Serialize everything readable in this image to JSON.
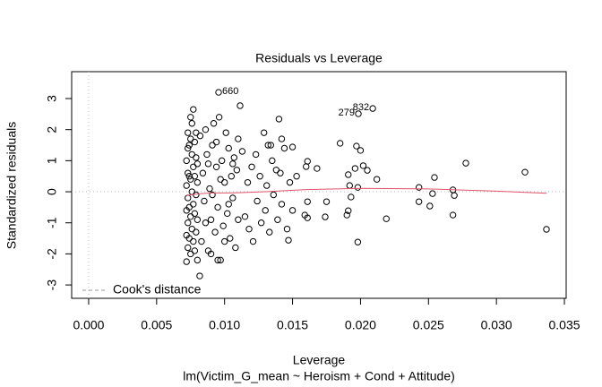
{
  "chart_data": {
    "type": "scatter",
    "title": "Residuals vs Leverage",
    "x_label": "Leverage",
    "y_label": "Standardized residuals",
    "subtitle": "lm(Victim_G_mean ~ Heroism + Cond + Attitude)",
    "xlim": [
      -0.00125,
      0.03513
    ],
    "ylim": [
      -3.43,
      3.865
    ],
    "xticks": [
      {
        "value": 0,
        "label": "0.000"
      },
      {
        "value": 0.005,
        "label": "0.005"
      },
      {
        "value": 0.01,
        "label": "0.010"
      },
      {
        "value": 0.015,
        "label": "0.015"
      },
      {
        "value": 0.02,
        "label": "0.020"
      },
      {
        "value": 0.025,
        "label": "0.025"
      },
      {
        "value": 0.03,
        "label": "0.030"
      },
      {
        "value": 0.035,
        "label": "0.035"
      }
    ],
    "yticks": [
      -3,
      -2,
      -1,
      0,
      1,
      2,
      3
    ],
    "ref_lines": {
      "x": 0,
      "y": 0,
      "color": "#bbbbbb"
    },
    "points": {
      "color": "#000000",
      "x": [
        0.00956,
        0.0209,
        0.01984,
        0.01114,
        0.00817,
        0.03368,
        0.0321,
        0.02775,
        0.0268,
        0.0268,
        0.0269,
        0.02544,
        0.0253,
        0.0251,
        0.0243,
        0.0243,
        0.0219,
        0.0198,
        0.0197,
        0.02,
        0.0196,
        0.0202,
        0.0205,
        0.0212,
        0.0191,
        0.0192,
        0.0193,
        0.0191,
        0.019,
        0.0198,
        0.0185,
        0.0168,
        0.0175,
        0.0174,
        0.016,
        0.0161,
        0.0161,
        0.0159,
        0.0161,
        0.0147,
        0.015,
        0.014,
        0.0142,
        0.0132,
        0.0134,
        0.0072,
        0.0073,
        0.0072,
        0.0073,
        0.0072,
        0.0073,
        0.0072,
        0.0073,
        0.0072,
        0.0073,
        0.0073,
        0.0075,
        0.0076,
        0.0077,
        0.0075,
        0.0076,
        0.0077,
        0.0075,
        0.0076,
        0.0077,
        0.0075,
        0.0076,
        0.0077,
        0.0075,
        0.0078,
        0.0079,
        0.0078,
        0.0079,
        0.0078,
        0.0079,
        0.0078,
        0.0079,
        0.0074,
        0.0074,
        0.0074,
        0.0074,
        0.008,
        0.008,
        0.008,
        0.008,
        0.0082,
        0.0083,
        0.0084,
        0.0085,
        0.0086,
        0.0087,
        0.0088,
        0.0089,
        0.009,
        0.0091,
        0.0092,
        0.0093,
        0.0094,
        0.0095,
        0.0096,
        0.0097,
        0.0098,
        0.0099,
        0.01,
        0.0101,
        0.0102,
        0.0103,
        0.0104,
        0.0105,
        0.0106,
        0.0107,
        0.0108,
        0.0109,
        0.011,
        0.011,
        0.0086,
        0.0088,
        0.0091,
        0.0094,
        0.0097,
        0.01,
        0.0103,
        0.0106,
        0.009,
        0.0095,
        0.0113,
        0.0115,
        0.0117,
        0.0118,
        0.012,
        0.0121,
        0.0123,
        0.0124,
        0.0126,
        0.0127,
        0.0129,
        0.013,
        0.0131,
        0.0133,
        0.0135,
        0.0136,
        0.0138,
        0.0139,
        0.0141,
        0.0142,
        0.0144,
        0.0146,
        0.0148,
        0.015,
        0.0153
      ],
      "y": [
        3.2,
        2.68,
        2.51,
        2.77,
        -2.71,
        -1.21,
        0.63,
        0.92,
        -0.75,
        0.06,
        -0.12,
        0.46,
        -0.06,
        -0.46,
        0.14,
        -0.32,
        -0.87,
        -1.62,
        1.47,
        1.33,
        0.75,
        0.84,
        0.69,
        0.4,
        0.55,
        0.2,
        -0.17,
        -0.61,
        -0.75,
        0.14,
        1.56,
        0.75,
        -0.32,
        -0.81,
        0.81,
        0.98,
        -0.32,
        -0.75,
        -0.84,
        -1.56,
        1.44,
        2.34,
        1.7,
        1.5,
        1.5,
        -2.25,
        -1.8,
        -1.4,
        -1.0,
        -0.6,
        -0.2,
        0.2,
        0.6,
        1.0,
        1.4,
        1.9,
        2.4,
        2.2,
        2.65,
        1.7,
        1.2,
        0.8,
        0.4,
        0.0,
        -0.4,
        -0.8,
        -1.2,
        -1.6,
        -2.0,
        -1.9,
        -1.3,
        -0.7,
        -0.1,
        0.5,
        1.1,
        1.6,
        1.9,
        -1.5,
        -0.5,
        0.5,
        1.5,
        -2.2,
        0.9,
        -0.9,
        0.3,
        1.8,
        -1.6,
        0.6,
        -0.3,
        2.0,
        1.2,
        -1.9,
        0.1,
        -0.9,
        1.5,
        2.2,
        -1.3,
        0.8,
        -0.5,
        2.4,
        -2.2,
        1.0,
        -1.1,
        0.3,
        1.9,
        -0.7,
        1.4,
        -1.5,
        0.5,
        -0.2,
        1.1,
        -1.8,
        0.7,
        -0.9,
        1.7,
        -1.0,
        0.9,
        -0.1,
        1.6,
        0.4,
        -1.6,
        -0.4,
        0.9,
        -2.0,
        -2.2,
        1.3,
        -0.8,
        0.3,
        -1.2,
        0.8,
        -1.6,
        1.2,
        -0.3,
        0.5,
        -1.0,
        1.9,
        -0.6,
        0.2,
        -1.3,
        1.0,
        -0.1,
        0.7,
        -0.9,
        0.6,
        -0.4,
        1.4,
        -1.2,
        0.3,
        -0.6,
        0.5
      ]
    },
    "smooth": {
      "color": "#df536b",
      "x": [
        0.0072,
        0.008,
        0.009,
        0.01,
        0.011,
        0.013,
        0.016,
        0.02,
        0.025,
        0.03,
        0.0337
      ],
      "y": [
        -0.12,
        -0.07,
        -0.04,
        -0.04,
        -0.03,
        0.0,
        0.07,
        0.11,
        0.09,
        0.02,
        -0.05
      ]
    },
    "point_labels": [
      {
        "label": "660",
        "x": 0.00956,
        "y": 3.2
      },
      {
        "label": "832",
        "x": 0.0209,
        "y": 2.68
      },
      {
        "label": "279",
        "x": 0.01984,
        "y": 2.51
      }
    ],
    "legend": {
      "entries": [
        "Cook's distance"
      ],
      "position": "bottomleft",
      "color": "#999999"
    }
  }
}
